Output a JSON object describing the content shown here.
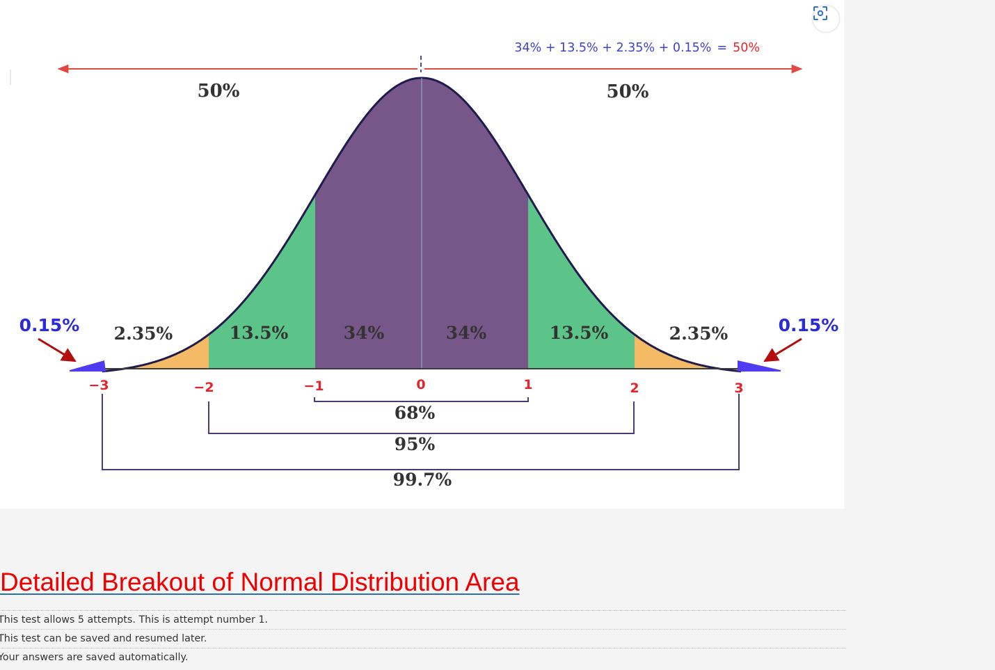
{
  "figure": {
    "equation": {
      "terms": "34% + 13.5% + 2.35% + 0.15%",
      "equals": "=",
      "result": "50%"
    },
    "halves": {
      "left": "50%",
      "right": "50%"
    },
    "regions": {
      "tail_left": "0.15%",
      "tail_right": "0.15%",
      "left_2_3": "2.35%",
      "left_1_2": "13.5%",
      "left_0_1": "34%",
      "right_0_1": "34%",
      "right_1_2": "13.5%",
      "right_2_3": "2.35%"
    },
    "axis_ticks": [
      "−3",
      "−2",
      "−1",
      "0",
      "1",
      "2",
      "3"
    ],
    "brackets": {
      "one_sd": "68%",
      "two_sd": "95%",
      "three_sd": "99.7%"
    },
    "colors": {
      "purple": "#775689",
      "green": "#5cc489",
      "orange": "#f4ba66",
      "blue": "#4f3cf2",
      "curve": "#1f1b4d",
      "arrow_red": "#e2483f",
      "tick_red": "#e8222a",
      "equation_blue": "#4040d0",
      "tail_label_blue": "#2b2bd8",
      "pointer_dark_red": "#b30d0d"
    }
  },
  "page": {
    "heading": "Detailed Breakout of Normal Distribution Area",
    "info_lines": [
      "This test allows 5 attempts. This is attempt number 1.",
      "This test can be saved and resumed later.",
      "Your answers are saved automatically."
    ]
  },
  "icons": {
    "scan": "scan-focus-icon"
  }
}
